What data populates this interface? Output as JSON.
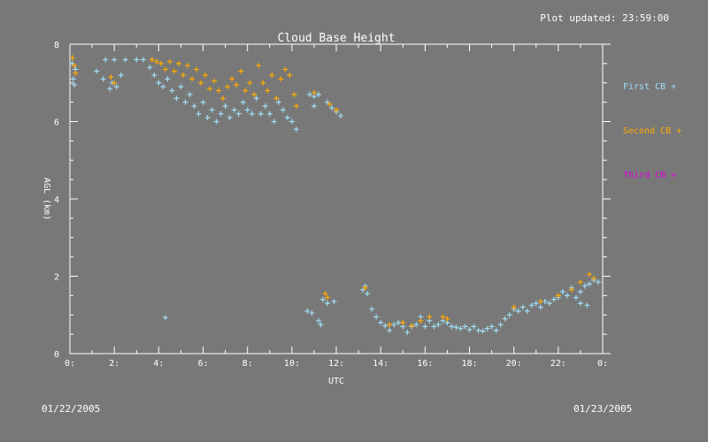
{
  "header": {
    "updated": "Plot updated: 23:59:00"
  },
  "dates": {
    "start": "01/22/2005",
    "end": "01/23/2005"
  },
  "legend": [
    {
      "label": "First CB +",
      "color": "#9fdcf5"
    },
    {
      "label": "Second CB +",
      "color": "#ffaa00"
    },
    {
      "label": "Third CB +",
      "color": "#e000e0"
    }
  ],
  "chart_data": {
    "type": "scatter",
    "title": "Cloud Base Height",
    "xlabel": "UTC",
    "ylabel": "AGL (km)",
    "xlim": [
      0,
      24
    ],
    "ylim": [
      0,
      8
    ],
    "x_ticks": [
      {
        "value": 0,
        "label": "0:"
      },
      {
        "value": 2,
        "label": "2:"
      },
      {
        "value": 4,
        "label": "4:"
      },
      {
        "value": 6,
        "label": "6:"
      },
      {
        "value": 8,
        "label": "8:"
      },
      {
        "value": 10,
        "label": "10:"
      },
      {
        "value": 12,
        "label": "12:"
      },
      {
        "value": 14,
        "label": "14:"
      },
      {
        "value": 16,
        "label": "16:"
      },
      {
        "value": 18,
        "label": "18:"
      },
      {
        "value": 20,
        "label": "20:"
      },
      {
        "value": 22,
        "label": "22:"
      },
      {
        "value": 24,
        "label": "0:"
      }
    ],
    "y_ticks": [
      {
        "value": 0,
        "label": "0"
      },
      {
        "value": 2,
        "label": "2"
      },
      {
        "value": 4,
        "label": "4"
      },
      {
        "value": 6,
        "label": "6"
      },
      {
        "value": 8,
        "label": "8"
      }
    ],
    "series": [
      {
        "name": "First CB",
        "color": "#9fdcf5",
        "points": [
          [
            0.1,
            7.5
          ],
          [
            0.15,
            7.1
          ],
          [
            0.2,
            6.95
          ],
          [
            0.25,
            7.35
          ],
          [
            1.2,
            7.3
          ],
          [
            1.5,
            7.1
          ],
          [
            1.8,
            6.85
          ],
          [
            1.9,
            7.0
          ],
          [
            2.1,
            6.9
          ],
          [
            2.3,
            7.2
          ],
          [
            1.6,
            7.6
          ],
          [
            2.0,
            7.6
          ],
          [
            2.5,
            7.6
          ],
          [
            3.0,
            7.6
          ],
          [
            3.3,
            7.6
          ],
          [
            3.6,
            7.4
          ],
          [
            3.8,
            7.2
          ],
          [
            4.0,
            7.0
          ],
          [
            4.2,
            6.9
          ],
          [
            4.4,
            7.1
          ],
          [
            4.6,
            6.8
          ],
          [
            4.8,
            6.6
          ],
          [
            5.0,
            6.9
          ],
          [
            5.2,
            6.5
          ],
          [
            5.4,
            6.7
          ],
          [
            5.6,
            6.4
          ],
          [
            5.8,
            6.2
          ],
          [
            6.0,
            6.5
          ],
          [
            6.2,
            6.1
          ],
          [
            6.4,
            6.3
          ],
          [
            6.6,
            6.0
          ],
          [
            6.8,
            6.2
          ],
          [
            7.0,
            6.4
          ],
          [
            7.2,
            6.1
          ],
          [
            7.4,
            6.3
          ],
          [
            7.6,
            6.2
          ],
          [
            7.8,
            6.5
          ],
          [
            8.0,
            6.3
          ],
          [
            8.2,
            6.2
          ],
          [
            8.4,
            6.6
          ],
          [
            8.6,
            6.2
          ],
          [
            8.8,
            6.4
          ],
          [
            9.0,
            6.2
          ],
          [
            9.2,
            6.0
          ],
          [
            9.4,
            6.5
          ],
          [
            9.6,
            6.3
          ],
          [
            9.8,
            6.1
          ],
          [
            10.0,
            6.0
          ],
          [
            10.2,
            5.8
          ],
          [
            10.8,
            6.7
          ],
          [
            11.0,
            6.65
          ],
          [
            11.2,
            6.7
          ],
          [
            11.0,
            6.4
          ],
          [
            11.6,
            6.5
          ],
          [
            11.8,
            6.35
          ],
          [
            12.0,
            6.25
          ],
          [
            12.2,
            6.15
          ],
          [
            4.3,
            0.93
          ],
          [
            10.7,
            1.1
          ],
          [
            10.9,
            1.05
          ],
          [
            11.2,
            0.85
          ],
          [
            11.3,
            0.75
          ],
          [
            11.4,
            1.4
          ],
          [
            11.6,
            1.3
          ],
          [
            11.9,
            1.35
          ],
          [
            13.2,
            1.65
          ],
          [
            13.3,
            1.75
          ],
          [
            13.4,
            1.55
          ],
          [
            13.6,
            1.15
          ],
          [
            13.8,
            0.95
          ],
          [
            14.0,
            0.8
          ],
          [
            14.2,
            0.72
          ],
          [
            14.4,
            0.6
          ],
          [
            14.6,
            0.75
          ],
          [
            14.8,
            0.8
          ],
          [
            15.0,
            0.7
          ],
          [
            15.2,
            0.55
          ],
          [
            15.4,
            0.7
          ],
          [
            15.6,
            0.75
          ],
          [
            15.8,
            0.95
          ],
          [
            16.0,
            0.7
          ],
          [
            16.2,
            0.85
          ],
          [
            16.4,
            0.7
          ],
          [
            16.6,
            0.75
          ],
          [
            16.8,
            0.85
          ],
          [
            17.0,
            0.8
          ],
          [
            17.2,
            0.7
          ],
          [
            17.4,
            0.68
          ],
          [
            17.6,
            0.65
          ],
          [
            17.8,
            0.7
          ],
          [
            18.0,
            0.62
          ],
          [
            18.2,
            0.7
          ],
          [
            18.4,
            0.6
          ],
          [
            18.6,
            0.58
          ],
          [
            18.8,
            0.65
          ],
          [
            19.0,
            0.7
          ],
          [
            19.2,
            0.6
          ],
          [
            19.4,
            0.75
          ],
          [
            19.6,
            0.9
          ],
          [
            19.8,
            1.0
          ],
          [
            20.0,
            1.15
          ],
          [
            20.2,
            1.1
          ],
          [
            20.4,
            1.2
          ],
          [
            20.6,
            1.1
          ],
          [
            20.8,
            1.25
          ],
          [
            21.0,
            1.3
          ],
          [
            21.2,
            1.2
          ],
          [
            21.4,
            1.35
          ],
          [
            21.6,
            1.3
          ],
          [
            21.8,
            1.4
          ],
          [
            22.0,
            1.45
          ],
          [
            22.2,
            1.6
          ],
          [
            22.4,
            1.5
          ],
          [
            22.6,
            1.7
          ],
          [
            22.8,
            1.45
          ],
          [
            23.0,
            1.6
          ],
          [
            23.2,
            1.75
          ],
          [
            23.4,
            1.8
          ],
          [
            23.6,
            1.9
          ],
          [
            23.8,
            1.85
          ],
          [
            23.0,
            1.3
          ],
          [
            23.3,
            1.25
          ]
        ]
      },
      {
        "name": "Second CB",
        "color": "#ffaa00",
        "points": [
          [
            0.12,
            7.65
          ],
          [
            0.2,
            7.45
          ],
          [
            0.25,
            7.25
          ],
          [
            1.85,
            7.15
          ],
          [
            2.0,
            7.0
          ],
          [
            3.7,
            7.6
          ],
          [
            3.9,
            7.55
          ],
          [
            4.1,
            7.5
          ],
          [
            4.3,
            7.35
          ],
          [
            4.5,
            7.55
          ],
          [
            4.7,
            7.3
          ],
          [
            4.9,
            7.5
          ],
          [
            5.1,
            7.2
          ],
          [
            5.3,
            7.45
          ],
          [
            5.5,
            7.1
          ],
          [
            5.7,
            7.35
          ],
          [
            5.9,
            7.0
          ],
          [
            6.1,
            7.2
          ],
          [
            6.3,
            6.85
          ],
          [
            6.5,
            7.05
          ],
          [
            6.7,
            6.8
          ],
          [
            6.9,
            6.6
          ],
          [
            7.1,
            6.9
          ],
          [
            7.3,
            7.1
          ],
          [
            7.5,
            6.95
          ],
          [
            7.7,
            7.3
          ],
          [
            7.9,
            6.8
          ],
          [
            8.1,
            7.0
          ],
          [
            8.3,
            6.7
          ],
          [
            8.5,
            7.45
          ],
          [
            8.7,
            7.0
          ],
          [
            8.9,
            6.8
          ],
          [
            9.1,
            7.2
          ],
          [
            9.3,
            6.6
          ],
          [
            9.5,
            7.1
          ],
          [
            9.7,
            7.35
          ],
          [
            9.9,
            7.2
          ],
          [
            10.1,
            6.7
          ],
          [
            10.2,
            6.4
          ],
          [
            11.0,
            6.75
          ],
          [
            11.7,
            6.45
          ],
          [
            12.0,
            6.3
          ],
          [
            11.5,
            1.55
          ],
          [
            11.6,
            1.45
          ],
          [
            13.3,
            1.7
          ],
          [
            14.4,
            0.75
          ],
          [
            15.0,
            0.8
          ],
          [
            15.4,
            0.72
          ],
          [
            15.8,
            0.85
          ],
          [
            16.2,
            0.95
          ],
          [
            16.8,
            0.95
          ],
          [
            17.0,
            0.9
          ],
          [
            20.0,
            1.2
          ],
          [
            21.2,
            1.35
          ],
          [
            22.0,
            1.5
          ],
          [
            22.6,
            1.65
          ],
          [
            23.0,
            1.85
          ],
          [
            23.4,
            2.05
          ],
          [
            23.6,
            1.95
          ]
        ]
      },
      {
        "name": "Third CB",
        "color": "#e000e0",
        "points": []
      }
    ]
  }
}
